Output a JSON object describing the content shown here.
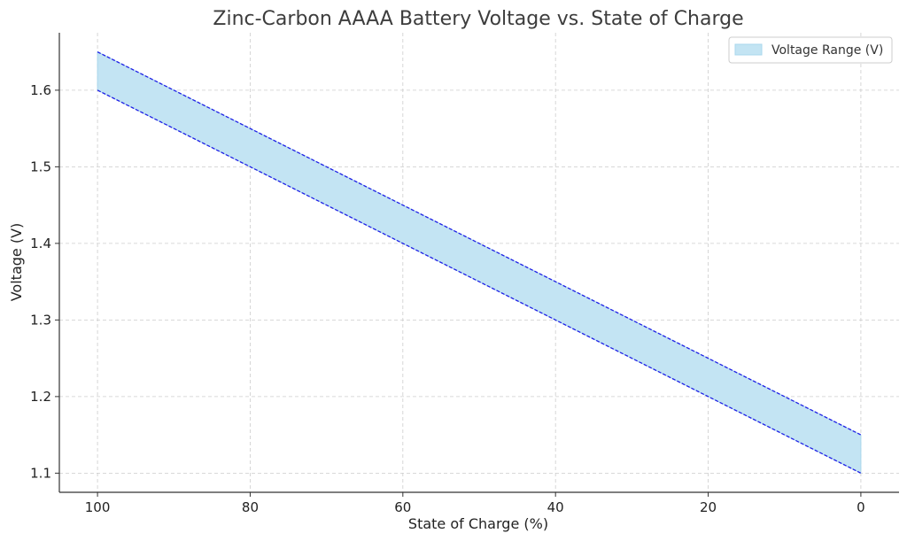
{
  "chart_data": {
    "type": "area",
    "title": "Zinc-Carbon AAAA Battery Voltage vs. State of Charge",
    "xlabel": "State of Charge (%)",
    "ylabel": "Voltage (V)",
    "x": [
      100,
      0
    ],
    "xlim": [
      105,
      -5
    ],
    "ylim": [
      1.075,
      1.675
    ],
    "x_ticks": [
      100,
      80,
      60,
      40,
      20,
      0
    ],
    "y_ticks": [
      1.1,
      1.2,
      1.3,
      1.4,
      1.5,
      1.6
    ],
    "x_tick_labels": [
      "100",
      "80",
      "60",
      "40",
      "20",
      "0"
    ],
    "y_tick_labels": [
      "1.1",
      "1.2",
      "1.3",
      "1.4",
      "1.5",
      "1.6"
    ],
    "series": [
      {
        "name": "Voltage Range (V)",
        "lower": [
          1.6,
          1.1
        ],
        "upper": [
          1.65,
          1.15
        ]
      }
    ],
    "grid": true,
    "legend_position": "top-right",
    "colors": {
      "fill": "#c3e4f3",
      "fill_edge": "#a9d7ec",
      "line": "#1f1fe6",
      "grid": "#cccccc",
      "axis": "#333333"
    }
  }
}
